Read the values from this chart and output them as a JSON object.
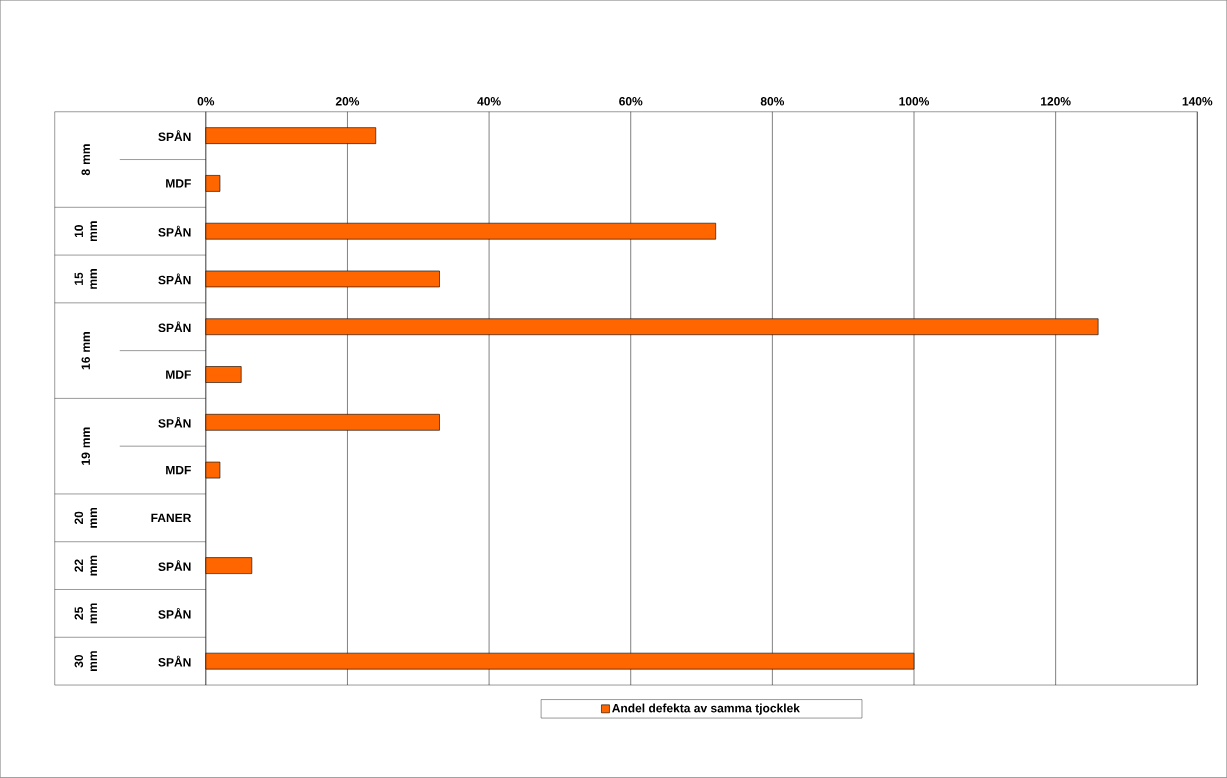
{
  "chart_data": {
    "type": "bar",
    "orientation": "horizontal",
    "categories": [
      "SPÅN",
      "MDF",
      "SPÅN",
      "SPÅN",
      "SPÅN",
      "MDF",
      "SPÅN",
      "MDF",
      "FANER",
      "SPÅN",
      "SPÅN",
      "SPÅN"
    ],
    "series": [
      {
        "name": "Andel defekta av samma tjocklek",
        "color": "#ff6600",
        "values": [
          24,
          2,
          72,
          33,
          126,
          5,
          33,
          2,
          null,
          6.5,
          null,
          100
        ]
      }
    ],
    "xlim": [
      0,
      140
    ],
    "xticks": [
      {
        "value": 0,
        "label": "0%"
      },
      {
        "value": 20,
        "label": "20%"
      },
      {
        "value": 40,
        "label": "40%"
      },
      {
        "value": 60,
        "label": "60%"
      },
      {
        "value": 80,
        "label": "80%"
      },
      {
        "value": 100,
        "label": "100%"
      },
      {
        "value": 120,
        "label": "120%"
      },
      {
        "value": 140,
        "label": "140%"
      }
    ],
    "annotations": [
      "8 mm",
      "10 mm",
      "15 mm",
      "16 mm",
      "19 mm",
      "20 mm",
      "22 mm",
      "25 mm",
      "30 mm"
    ],
    "grid": "x",
    "legend": "bottom"
  }
}
